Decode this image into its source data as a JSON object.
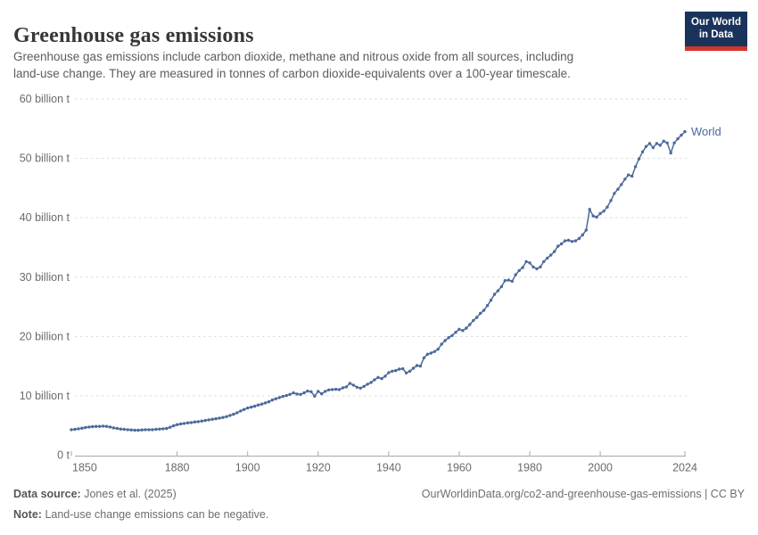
{
  "header": {
    "title": "Greenhouse gas emissions",
    "subtitle_line1": "Greenhouse gas emissions include carbon dioxide, methane and nitrous oxide from all sources, including",
    "subtitle_line2": "land-use change. They are measured in tonnes of carbon dioxide-equivalents over a 100-year timescale.",
    "logo": {
      "line1": "Our World",
      "line2": "in Data",
      "bg_color": "#19335b",
      "accent_color": "#d2352c"
    }
  },
  "chart_data": {
    "type": "line",
    "title": "Greenhouse gas emissions",
    "xlabel": "",
    "ylabel": "",
    "unit_short": "billion t",
    "xlim": [
      1850,
      2024
    ],
    "ylim": [
      0,
      60
    ],
    "grid": "horizontal-dashed",
    "grid_color": "#dadada",
    "axis_color": "#a8a8a8",
    "tick_label_color": "#6b6b6b",
    "x_ticks": [
      1850,
      1880,
      1900,
      1920,
      1940,
      1960,
      1980,
      2000,
      2024
    ],
    "y_ticks": [
      {
        "value": 0,
        "label": "0 t"
      },
      {
        "value": 10,
        "label": "10 billion t"
      },
      {
        "value": 20,
        "label": "20 billion t"
      },
      {
        "value": 30,
        "label": "30 billion t"
      },
      {
        "value": 40,
        "label": "40 billion t"
      },
      {
        "value": 50,
        "label": "50 billion t"
      },
      {
        "value": 60,
        "label": "60 billion t"
      }
    ],
    "legend_position": "end-of-line",
    "series": [
      {
        "name": "World",
        "color": "#4c6a9c",
        "start_year": 1850,
        "end_year": 2024,
        "values": [
          4.3,
          4.35,
          4.45,
          4.55,
          4.65,
          4.75,
          4.8,
          4.85,
          4.85,
          4.9,
          4.85,
          4.75,
          4.6,
          4.5,
          4.4,
          4.35,
          4.3,
          4.25,
          4.2,
          4.2,
          4.25,
          4.3,
          4.3,
          4.3,
          4.35,
          4.4,
          4.45,
          4.5,
          4.7,
          4.95,
          5.15,
          5.25,
          5.35,
          5.45,
          5.5,
          5.6,
          5.65,
          5.75,
          5.85,
          5.95,
          6.05,
          6.15,
          6.25,
          6.35,
          6.5,
          6.7,
          6.9,
          7.15,
          7.45,
          7.7,
          7.95,
          8.1,
          8.25,
          8.45,
          8.6,
          8.8,
          9.0,
          9.3,
          9.5,
          9.7,
          9.9,
          10.05,
          10.25,
          10.5,
          10.3,
          10.25,
          10.5,
          10.8,
          10.7,
          9.95,
          10.75,
          10.35,
          10.75,
          11.0,
          11.05,
          11.1,
          11.05,
          11.35,
          11.5,
          12.1,
          11.8,
          11.45,
          11.3,
          11.6,
          11.95,
          12.25,
          12.7,
          13.1,
          12.9,
          13.3,
          13.9,
          14.15,
          14.25,
          14.5,
          14.55,
          13.85,
          14.15,
          14.65,
          15.1,
          15.0,
          16.4,
          17.0,
          17.2,
          17.45,
          17.85,
          18.7,
          19.3,
          19.8,
          20.15,
          20.7,
          21.2,
          21.0,
          21.4,
          22.0,
          22.7,
          23.2,
          23.9,
          24.4,
          25.2,
          26.1,
          27.1,
          27.7,
          28.4,
          29.4,
          29.5,
          29.3,
          30.4,
          31.1,
          31.6,
          32.6,
          32.4,
          31.7,
          31.4,
          31.7,
          32.6,
          33.2,
          33.7,
          34.3,
          35.2,
          35.6,
          36.1,
          36.2,
          36.0,
          36.1,
          36.5,
          37.1,
          37.9,
          41.4,
          40.3,
          40.1,
          40.7,
          41.1,
          41.8,
          42.9,
          44.1,
          44.8,
          45.6,
          46.5,
          47.2,
          47.0,
          48.6,
          49.9,
          51.1,
          52.0,
          52.5,
          51.8,
          52.5,
          52.2,
          52.9,
          52.6,
          50.9,
          52.6,
          53.3,
          53.9,
          54.5
        ]
      }
    ]
  },
  "footer": {
    "source_label": "Data source:",
    "source_value": "Jones et al. (2025)",
    "rights": "OurWorldinData.org/co2-and-greenhouse-gas-emissions | CC BY",
    "note_label": "Note:",
    "note_value": "Land-use change emissions can be negative."
  }
}
